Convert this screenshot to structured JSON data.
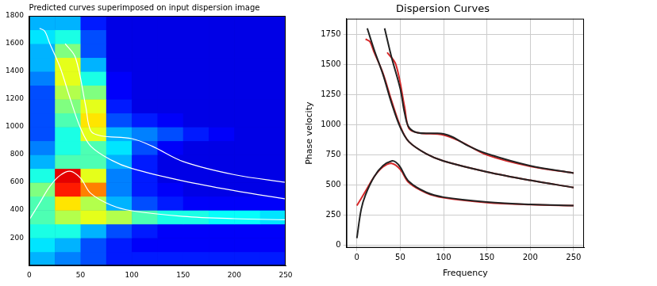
{
  "chart_data": [
    {
      "type": "line",
      "title": "Predicted curves superimposed on input dispersion image",
      "xlim": [
        0,
        250
      ],
      "xticks": [
        0,
        50,
        100,
        150,
        200,
        250
      ],
      "ylim": [
        0,
        1800
      ],
      "yticks": [
        200,
        400,
        600,
        800,
        1000,
        1200,
        1400,
        1600,
        1800
      ],
      "grid": false,
      "heatmap": {
        "x": [
          12.5,
          37.5,
          62.5,
          87.5,
          112.5,
          137.5,
          162.5,
          187.5,
          212.5,
          237.5
        ],
        "y": [
          50,
          150,
          250,
          350,
          450,
          550,
          650,
          750,
          850,
          950,
          1050,
          1150,
          1250,
          1350,
          1450,
          1550,
          1650,
          1750
        ],
        "values": [
          [
            0.3,
            0.25,
            0.2,
            0.15,
            0.15,
            0.15,
            0.15,
            0.15,
            0.15,
            0.15
          ],
          [
            0.35,
            0.3,
            0.2,
            0.15,
            0.12,
            0.12,
            0.12,
            0.12,
            0.12,
            0.12
          ],
          [
            0.4,
            0.4,
            0.3,
            0.2,
            0.15,
            0.12,
            0.12,
            0.12,
            0.12,
            0.12
          ],
          [
            0.45,
            0.55,
            0.6,
            0.55,
            0.45,
            0.4,
            0.4,
            0.38,
            0.38,
            0.35
          ],
          [
            0.45,
            0.65,
            0.55,
            0.3,
            0.2,
            0.15,
            0.12,
            0.12,
            0.12,
            0.12
          ],
          [
            0.5,
            0.85,
            0.75,
            0.25,
            0.15,
            0.12,
            0.1,
            0.1,
            0.1,
            0.1
          ],
          [
            0.4,
            0.9,
            0.6,
            0.25,
            0.15,
            0.1,
            0.1,
            0.1,
            0.1,
            0.1
          ],
          [
            0.3,
            0.45,
            0.45,
            0.3,
            0.15,
            0.1,
            0.1,
            0.1,
            0.1,
            0.1
          ],
          [
            0.25,
            0.4,
            0.45,
            0.35,
            0.2,
            0.12,
            0.1,
            0.1,
            0.1,
            0.1
          ],
          [
            0.2,
            0.4,
            0.6,
            0.3,
            0.25,
            0.2,
            0.15,
            0.12,
            0.1,
            0.1
          ],
          [
            0.2,
            0.45,
            0.65,
            0.2,
            0.15,
            0.12,
            0.1,
            0.1,
            0.1,
            0.1
          ],
          [
            0.2,
            0.5,
            0.6,
            0.15,
            0.1,
            0.1,
            0.1,
            0.1,
            0.1,
            0.1
          ],
          [
            0.2,
            0.55,
            0.5,
            0.12,
            0.1,
            0.1,
            0.1,
            0.1,
            0.1,
            0.1
          ],
          [
            0.25,
            0.6,
            0.4,
            0.12,
            0.1,
            0.1,
            0.1,
            0.1,
            0.1,
            0.1
          ],
          [
            0.3,
            0.6,
            0.3,
            0.1,
            0.1,
            0.1,
            0.1,
            0.1,
            0.1,
            0.1
          ],
          [
            0.3,
            0.5,
            0.2,
            0.1,
            0.1,
            0.1,
            0.1,
            0.1,
            0.1,
            0.1
          ],
          [
            0.35,
            0.4,
            0.2,
            0.1,
            0.1,
            0.1,
            0.1,
            0.1,
            0.1,
            0.1
          ],
          [
            0.3,
            0.3,
            0.15,
            0.1,
            0.1,
            0.1,
            0.1,
            0.1,
            0.1,
            0.1
          ]
        ]
      },
      "series": [
        {
          "color": "#ffffff",
          "x": [
            0,
            10,
            20,
            30,
            40,
            50,
            60,
            80,
            100,
            150,
            200,
            250
          ],
          "values": [
            330,
            450,
            570,
            650,
            680,
            630,
            520,
            435,
            395,
            355,
            338,
            330
          ]
        },
        {
          "color": "#ffffff",
          "x": [
            10,
            15,
            20,
            30,
            40,
            50,
            60,
            80,
            100,
            150,
            200,
            250
          ],
          "values": [
            1710,
            1690,
            1600,
            1430,
            1200,
            990,
            860,
            760,
            700,
            610,
            540,
            480
          ]
        },
        {
          "color": "#ffffff",
          "x": [
            35,
            45,
            55,
            60,
            70,
            100,
            120,
            150,
            200,
            250
          ],
          "values": [
            1600,
            1500,
            1150,
            970,
            935,
            915,
            860,
            750,
            655,
            600
          ]
        }
      ]
    },
    {
      "type": "line",
      "title": "Dispersion Curves",
      "x_label": "Frequency",
      "y_label": "Phase velocity",
      "xlim": [
        -12,
        262
      ],
      "xticks": [
        0,
        50,
        100,
        150,
        200,
        250
      ],
      "ylim": [
        -20,
        1880
      ],
      "yticks": [
        0,
        250,
        500,
        750,
        1000,
        1250,
        1500,
        1750
      ],
      "grid": true,
      "series": [
        {
          "color": "#222222",
          "x": [
            0,
            5,
            10,
            20,
            30,
            40,
            45,
            50,
            60,
            80,
            100,
            150,
            200,
            250
          ],
          "values": [
            60,
            300,
            420,
            570,
            660,
            700,
            690,
            650,
            530,
            440,
            400,
            360,
            340,
            330
          ]
        },
        {
          "color": "#222222",
          "x": [
            12,
            20,
            30,
            40,
            50,
            60,
            80,
            100,
            150,
            200,
            250
          ],
          "values": [
            1800,
            1620,
            1420,
            1180,
            980,
            860,
            760,
            700,
            610,
            540,
            480
          ]
        },
        {
          "color": "#222222",
          "x": [
            32,
            40,
            50,
            55,
            60,
            70,
            90,
            100,
            110,
            130,
            150,
            200,
            250
          ],
          "values": [
            1800,
            1560,
            1300,
            1100,
            980,
            935,
            930,
            925,
            900,
            820,
            760,
            660,
            600
          ]
        },
        {
          "color": "#d62728",
          "x": [
            0,
            10,
            20,
            30,
            40,
            50,
            60,
            80,
            100,
            150,
            200,
            250
          ],
          "values": [
            330,
            450,
            570,
            650,
            680,
            630,
            520,
            435,
            395,
            355,
            338,
            330
          ]
        },
        {
          "color": "#d62728",
          "x": [
            10,
            15,
            20,
            30,
            40,
            50,
            60,
            80,
            100,
            150,
            200,
            250
          ],
          "values": [
            1710,
            1690,
            1600,
            1430,
            1200,
            990,
            860,
            760,
            700,
            610,
            540,
            480
          ]
        },
        {
          "color": "#d62728",
          "x": [
            35,
            45,
            55,
            60,
            70,
            100,
            120,
            150,
            200,
            250
          ],
          "values": [
            1600,
            1500,
            1150,
            970,
            935,
            915,
            860,
            750,
            655,
            600
          ]
        }
      ]
    }
  ]
}
